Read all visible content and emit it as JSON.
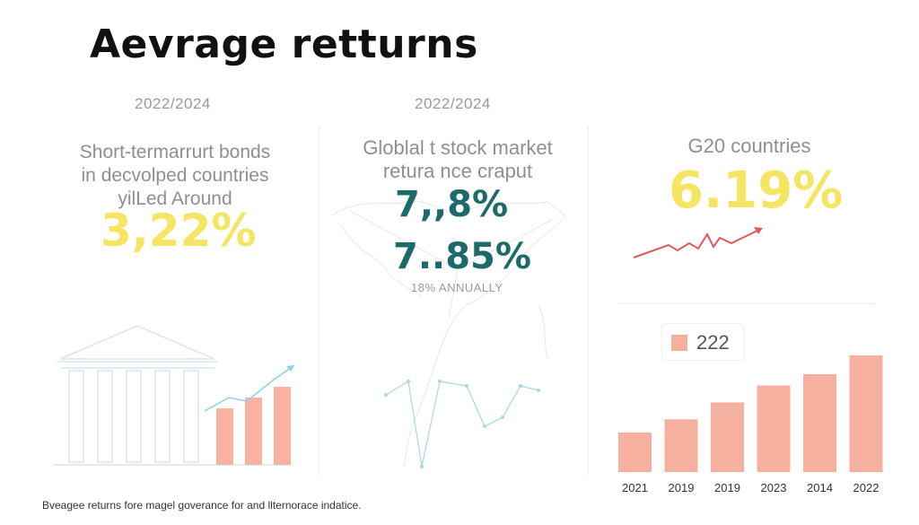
{
  "header": {
    "title": "Aevrage retturns"
  },
  "panels": [
    {
      "period": "2022/2024",
      "description": [
        "Short-termarrurt bonds",
        "in decvolped countries",
        "yilLed Around"
      ],
      "value": "3,22%"
    },
    {
      "period": "2022/2024",
      "description": [
        "Globlal t stock market",
        "retura nce craput"
      ],
      "values": [
        "7,,8%",
        "7..85%"
      ],
      "caption": "18% ANNUALLY"
    },
    {
      "description": [
        "G20 countries"
      ],
      "value": "6.19%"
    }
  ],
  "chart_data": {
    "type": "bar",
    "categories": [
      "2021",
      "2019",
      "2019",
      "2023",
      "2014",
      "2022"
    ],
    "values": [
      2.1,
      2.8,
      3.7,
      4.6,
      5.2,
      6.2
    ],
    "legend": [
      "222"
    ],
    "colors": {
      "bar": "#f6b0a0"
    }
  },
  "footer": {
    "note": "Bveagee returns fore magel goverance for and llternorace indatice."
  },
  "colors": {
    "accent_yellow": "#f6e463",
    "accent_teal": "#1d6a6a",
    "accent_red": "#e05a5a"
  },
  "icons": [
    "bank-building-icon",
    "world-map-icon",
    "trend-line-icon"
  ]
}
